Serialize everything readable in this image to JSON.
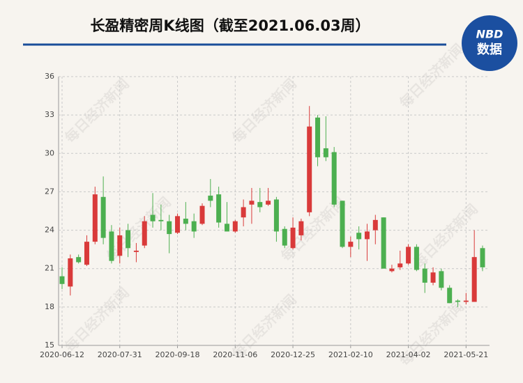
{
  "chart_data": {
    "type": "candlestick",
    "title": "长盈精密周K线图（截至2021.06.03周）",
    "categories": [
      "2020-06-12",
      null,
      null,
      null,
      null,
      null,
      null,
      "2020-07-31",
      null,
      null,
      null,
      null,
      null,
      null,
      "2020-09-18",
      null,
      null,
      null,
      null,
      null,
      null,
      "2020-11-06",
      null,
      null,
      null,
      null,
      null,
      null,
      "2020-12-25",
      null,
      null,
      null,
      null,
      null,
      null,
      "2021-02-10",
      null,
      null,
      null,
      null,
      null,
      null,
      "2021-04-02",
      null,
      null,
      null,
      null,
      null,
      null,
      "2021-05-21",
      null,
      null
    ],
    "open": [
      20.4,
      19.6,
      21.9,
      21.3,
      23.1,
      26.6,
      23.9,
      22.0,
      24.0,
      22.3,
      22.8,
      25.2,
      24.8,
      24.7,
      23.8,
      24.9,
      24.7,
      24.5,
      26.7,
      26.8,
      24.5,
      23.9,
      25.0,
      26.0,
      26.2,
      26.0,
      26.4,
      24.1,
      22.6,
      23.6,
      25.4,
      32.8,
      30.4,
      30.1,
      26.3,
      22.7,
      23.8,
      23.3,
      24.0,
      25.0,
      20.8,
      21.1,
      21.4,
      22.7,
      21.0,
      19.9,
      20.8,
      19.5,
      18.5,
      18.4,
      18.4,
      22.6
    ],
    "high": [
      21.1,
      22.1,
      22.1,
      23.6,
      27.4,
      28.2,
      24.4,
      24.2,
      24.5,
      23.0,
      25.1,
      26.9,
      26.0,
      25.2,
      25.3,
      26.2,
      25.3,
      26.1,
      28.0,
      27.4,
      26.2,
      24.8,
      26.4,
      27.3,
      27.3,
      27.3,
      26.6,
      24.3,
      25.0,
      24.9,
      33.7,
      33.0,
      32.9,
      30.5,
      26.3,
      23.5,
      24.3,
      24.5,
      25.2,
      25.0,
      21.3,
      22.4,
      22.9,
      22.9,
      21.4,
      21.1,
      21.0,
      19.7,
      18.6,
      19.1,
      24.0,
      22.8
    ],
    "low": [
      19.4,
      18.9,
      21.4,
      21.2,
      22.9,
      22.9,
      21.4,
      21.4,
      21.9,
      21.5,
      22.6,
      24.2,
      24.0,
      22.2,
      23.7,
      24.0,
      23.4,
      24.4,
      25.8,
      24.2,
      23.9,
      23.8,
      24.3,
      24.5,
      25.4,
      25.9,
      23.1,
      22.6,
      22.5,
      23.2,
      25.1,
      29.0,
      29.4,
      25.8,
      22.6,
      21.9,
      22.5,
      21.6,
      22.9,
      21.0,
      20.7,
      20.9,
      21.3,
      20.8,
      19.1,
      19.7,
      19.3,
      18.3,
      18.0,
      18.2,
      18.4,
      20.8
    ],
    "close": [
      19.8,
      21.8,
      21.5,
      23.1,
      26.8,
      23.4,
      21.6,
      23.6,
      22.6,
      22.4,
      24.7,
      24.7,
      24.7,
      23.7,
      25.1,
      24.5,
      23.9,
      25.9,
      26.3,
      24.6,
      23.9,
      24.7,
      25.8,
      26.3,
      25.8,
      26.3,
      23.9,
      22.8,
      24.2,
      24.7,
      32.1,
      29.7,
      29.7,
      26.0,
      22.7,
      23.1,
      23.3,
      23.9,
      24.8,
      21.0,
      21.0,
      21.4,
      22.7,
      20.9,
      19.9,
      20.7,
      19.5,
      18.3,
      18.4,
      18.5,
      21.9,
      21.1
    ],
    "up_color": "#d93a3a",
    "down_color": "#4caf50",
    "ylim": [
      15,
      36
    ],
    "yticks": [
      15,
      18,
      21,
      24,
      27,
      30,
      33,
      36
    ],
    "grid": true
  },
  "logo": {
    "brand": "NBD",
    "label": "数据"
  },
  "watermark": "每日经济新闻"
}
